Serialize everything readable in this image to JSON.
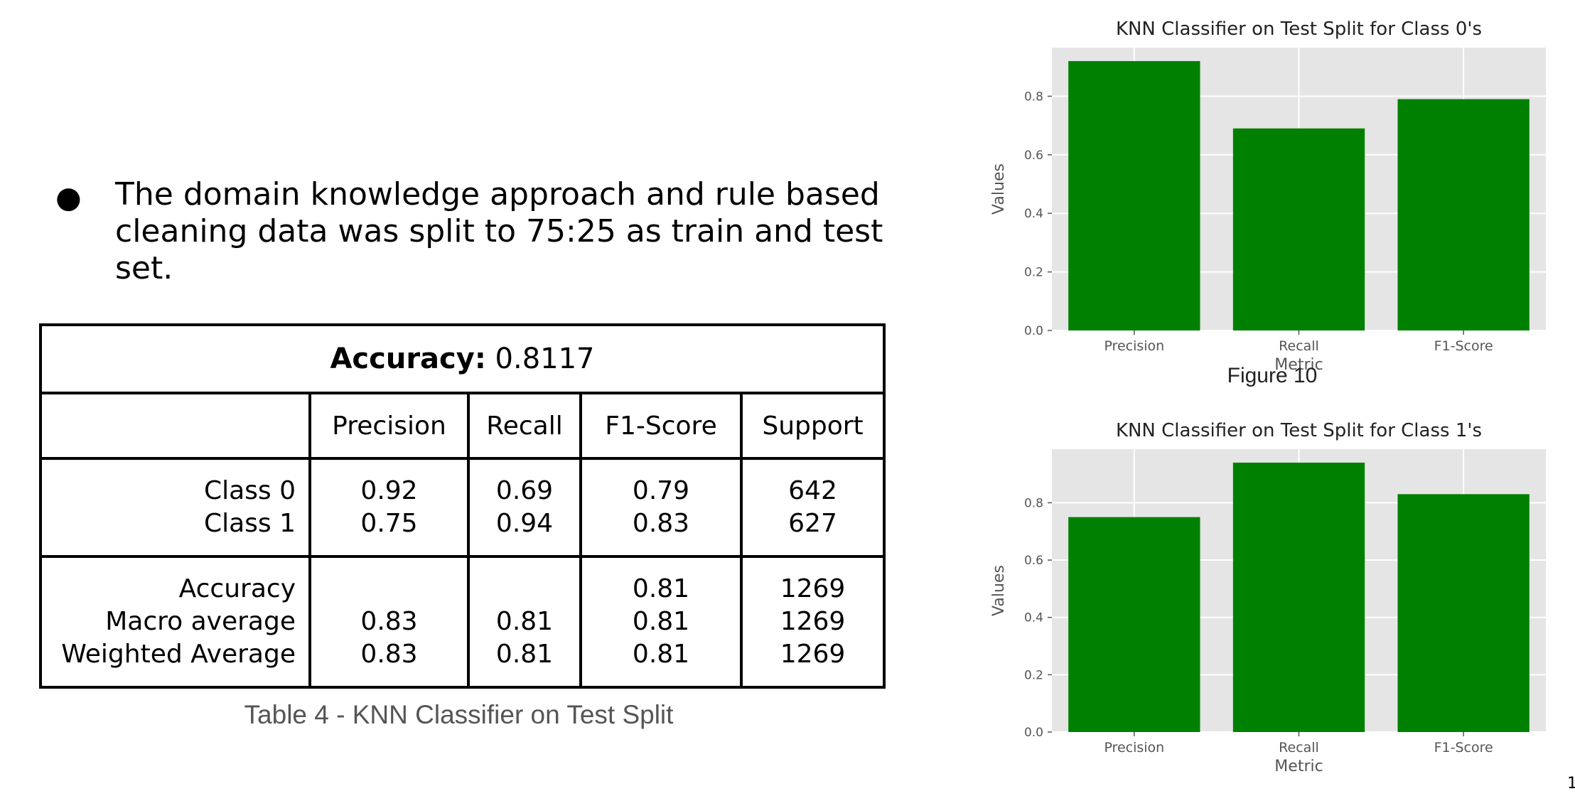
{
  "bullet": {
    "symbol": "●",
    "text": "The domain knowledge approach and rule based\ncleaning data was split to 75:25 as train and test set."
  },
  "table": {
    "accuracy_label": "Accuracy:",
    "accuracy_value": "0.8117",
    "headers": [
      "",
      "Precision",
      "Recall",
      "F1-Score",
      "Support"
    ],
    "group1": {
      "labels": "Class 0\nClass 1",
      "precision": "0.92\n0.75",
      "recall": "0.69\n0.94",
      "f1": "0.79\n0.83",
      "support": "642\n627"
    },
    "group2": {
      "labels": "Accuracy\nMacro average\nWeighted Average",
      "precision": "\n0.83\n0.83",
      "recall": "\n0.81\n0.81",
      "f1": "0.81\n0.81\n0.81",
      "support": "1269\n1269\n1269"
    },
    "caption": "Table 4 - KNN Classifier on Test Split"
  },
  "figure_caption": "Figure 10",
  "slide_number": "1",
  "colors": {
    "bar": "#008000",
    "plot_bg": "#e5e5e5",
    "grid": "#ffffff"
  },
  "chart_data": [
    {
      "type": "bar",
      "title": "KNN Classifier on Test Split for Class 0's",
      "xlabel": "Metric",
      "ylabel": "Values",
      "categories": [
        "Precision",
        "Recall",
        "F1-Score"
      ],
      "values": [
        0.92,
        0.69,
        0.79
      ],
      "ylim": [
        0,
        0.966
      ],
      "yticks": [
        "0.0",
        "0.2",
        "0.4",
        "0.6",
        "0.8"
      ],
      "grid": true
    },
    {
      "type": "bar",
      "title": "KNN Classifier on Test Split for Class 1's",
      "xlabel": "Metric",
      "ylabel": "Values",
      "categories": [
        "Precision",
        "Recall",
        "F1-Score"
      ],
      "values": [
        0.75,
        0.94,
        0.83
      ],
      "ylim": [
        0,
        0.987
      ],
      "yticks": [
        "0.0",
        "0.2",
        "0.4",
        "0.6",
        "0.8"
      ],
      "grid": true
    }
  ]
}
